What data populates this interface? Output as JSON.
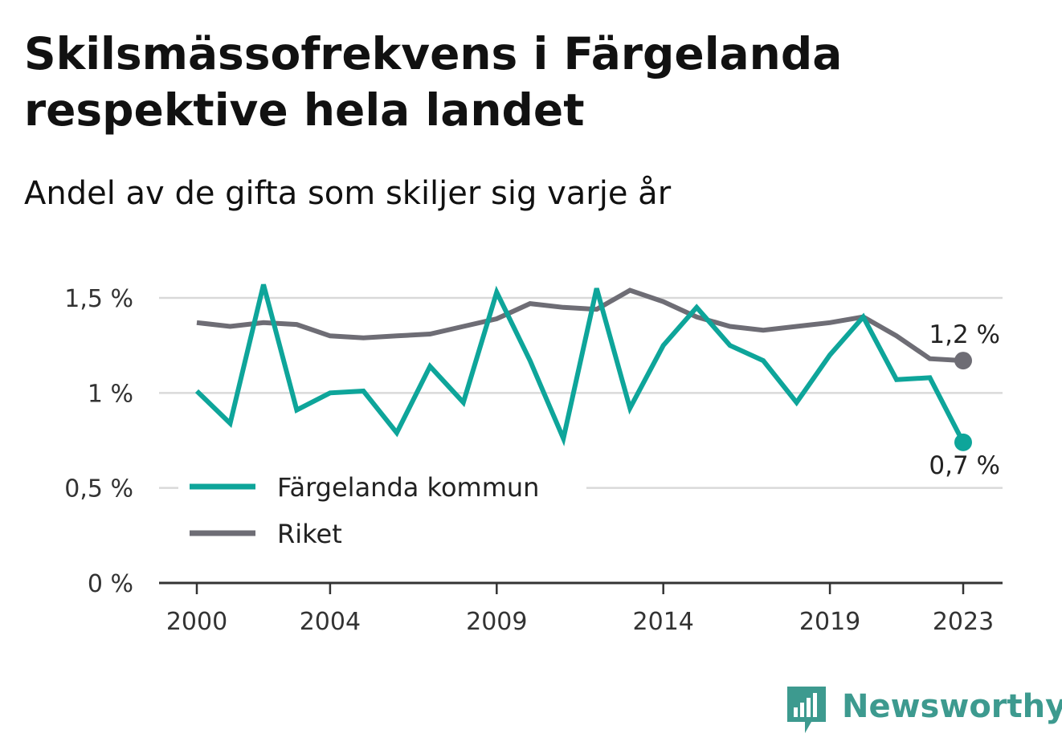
{
  "header": {
    "title": "Skilsmässofrekvens i Färgelanda respektive hela landet",
    "subtitle": "Andel av de gifta som skiljer sig varje år"
  },
  "brand": {
    "name": "Newsworthy",
    "icon": "bar-chart-badge-icon",
    "color": "#3d9a8f"
  },
  "colors": {
    "kommun": "#0ea59a",
    "riket": "#6e6d75",
    "grid": "#d9d9d9",
    "axis": "#333333"
  },
  "chart_data": {
    "type": "line",
    "title": "Skilsmässofrekvens i Färgelanda respektive hela landet",
    "subtitle": "Andel av de gifta som skiljer sig varje år",
    "xlabel": "",
    "ylabel": "",
    "ylim": [
      0,
      1.6
    ],
    "xlim": [
      2000,
      2023
    ],
    "y_ticks": [
      0,
      0.5,
      1,
      1.5
    ],
    "y_tick_labels": [
      "0 %",
      "0,5 %",
      "1 %",
      "1,5 %"
    ],
    "x_ticks": [
      2000,
      2004,
      2009,
      2014,
      2019,
      2023
    ],
    "x_tick_labels": [
      "2000",
      "2004",
      "2009",
      "2014",
      "2019",
      "2023"
    ],
    "grid": "horizontal",
    "legend_position": "bottom-left",
    "x": [
      2000,
      2001,
      2002,
      2003,
      2004,
      2005,
      2006,
      2007,
      2008,
      2009,
      2010,
      2011,
      2012,
      2013,
      2014,
      2015,
      2016,
      2017,
      2018,
      2019,
      2020,
      2021,
      2022,
      2023
    ],
    "series": [
      {
        "name": "Färgelanda kommun",
        "key": "kommun",
        "values": [
          1.01,
          0.84,
          1.57,
          0.91,
          1.0,
          1.01,
          0.79,
          1.14,
          0.95,
          1.53,
          1.17,
          0.76,
          1.55,
          0.92,
          1.25,
          1.45,
          1.25,
          1.17,
          0.95,
          1.2,
          1.4,
          1.07,
          1.08,
          0.74
        ],
        "end_label": "0,7 %"
      },
      {
        "name": "Riket",
        "key": "riket",
        "values": [
          1.37,
          1.35,
          1.37,
          1.36,
          1.3,
          1.29,
          1.3,
          1.31,
          1.35,
          1.39,
          1.47,
          1.45,
          1.44,
          1.54,
          1.48,
          1.4,
          1.35,
          1.33,
          1.35,
          1.37,
          1.4,
          1.3,
          1.18,
          1.17
        ],
        "end_label": "1,2 %"
      }
    ]
  }
}
